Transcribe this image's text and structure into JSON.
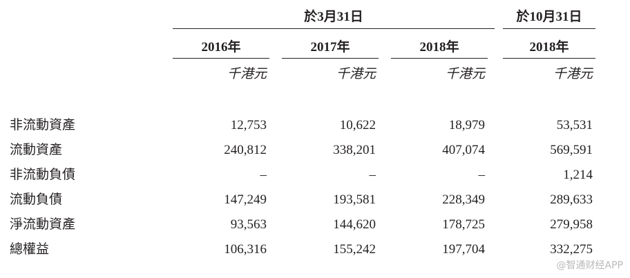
{
  "table": {
    "group_headers": [
      "於3月31日",
      "於10月31日"
    ],
    "columns": [
      "2016年",
      "2017年",
      "2018年",
      "2018年"
    ],
    "units": [
      "千港元",
      "千港元",
      "千港元",
      "千港元"
    ],
    "rows": [
      {
        "label": "非流動資產",
        "values": [
          "12,753",
          "10,622",
          "18,979",
          "53,531"
        ]
      },
      {
        "label": "流動資產",
        "values": [
          "240,812",
          "338,201",
          "407,074",
          "569,591"
        ]
      },
      {
        "label": "非流動負債",
        "values": [
          "–",
          "–",
          "–",
          "1,214"
        ]
      },
      {
        "label": "流動負債",
        "values": [
          "147,249",
          "193,581",
          "228,349",
          "289,633"
        ]
      },
      {
        "label": "淨流動資產",
        "values": [
          "93,563",
          "144,620",
          "178,725",
          "279,958"
        ]
      },
      {
        "label": "總權益",
        "values": [
          "106,316",
          "155,242",
          "197,704",
          "332,275"
        ]
      }
    ]
  },
  "watermark": "@智通财经APP"
}
